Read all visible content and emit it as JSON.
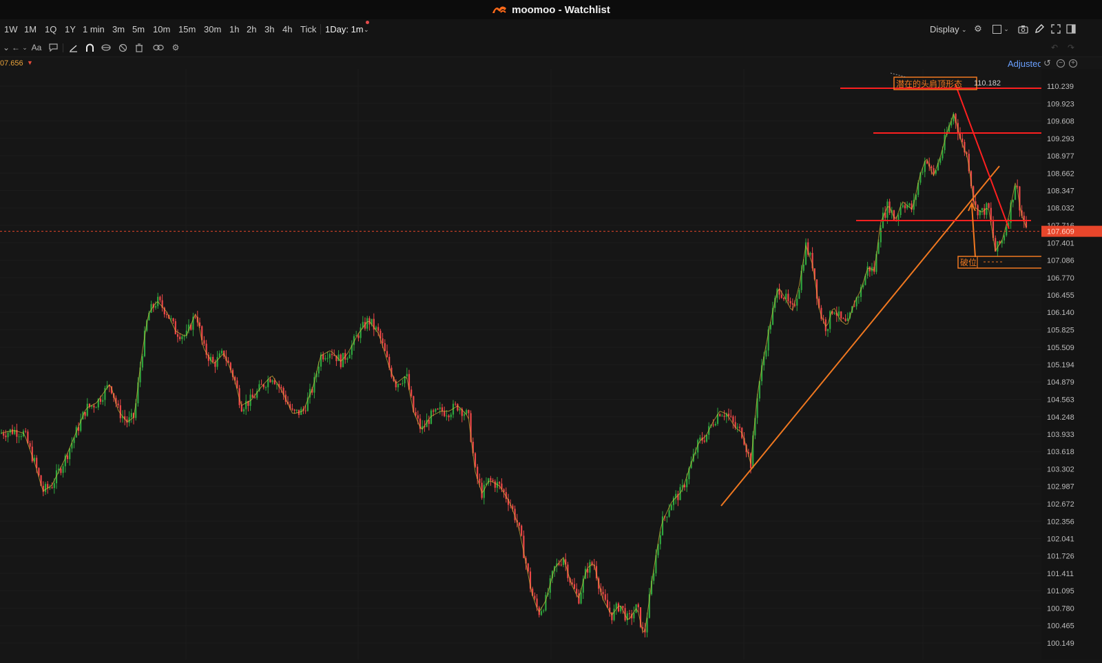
{
  "window": {
    "title": "moomoo - Watchlist",
    "logo_icon": "moomoo-logo-icon"
  },
  "toolbar": {
    "intervals": [
      "1W",
      "1M",
      "1Q",
      "1Y",
      "1 min",
      "3m",
      "5m",
      "10m",
      "15m",
      "30m",
      "1h",
      "2h",
      "3h",
      "4h",
      "Tick"
    ],
    "range_select": "1Day: 1m",
    "display_label": "Display",
    "right_icons": [
      "settings-gear-icon",
      "layout-square-icon",
      "camera-icon",
      "pen-icon",
      "fullscreen-icon",
      "sidebar-toggle-icon"
    ]
  },
  "drawing_toolbar": {
    "icons": [
      "cursor-icon",
      "arrow-back-icon",
      "text-aa-icon",
      "comment-icon",
      "line-draw-icon",
      "magnet-icon",
      "eye-lock-icon",
      "hide-icon",
      "trash-icon",
      "link-icon",
      "settings-icon"
    ],
    "text_tool_label": "Aa"
  },
  "status": {
    "price_readout": "07.656",
    "adjusted_label": "Adjusted"
  },
  "colors": {
    "up": "#2fa83f",
    "down": "#f04848",
    "annotation": "#f07820",
    "hline": "#ff2020",
    "current_price_bg": "#e8462b"
  },
  "chart_data": {
    "type": "candlestick",
    "ylim": [
      100.149,
      110.45
    ],
    "y_ticks": [
      "110.239",
      "109.923",
      "109.608",
      "109.293",
      "108.977",
      "108.662",
      "108.347",
      "108.032",
      "107.716",
      "107.401",
      "107.086",
      "106.770",
      "106.455",
      "106.140",
      "105.825",
      "105.509",
      "105.194",
      "104.879",
      "104.563",
      "104.248",
      "103.933",
      "103.618",
      "103.302",
      "102.987",
      "102.672",
      "102.356",
      "102.041",
      "101.726",
      "101.411",
      "101.095",
      "100.780",
      "100.465",
      "100.149"
    ],
    "current_price": {
      "label": "107.609",
      "value": 107.609
    },
    "path": [
      [
        0,
        103.95
      ],
      [
        20,
        104.0
      ],
      [
        35,
        103.95
      ],
      [
        52,
        103.35
      ],
      [
        62,
        102.9
      ],
      [
        75,
        103.0
      ],
      [
        95,
        103.5
      ],
      [
        110,
        103.95
      ],
      [
        125,
        104.4
      ],
      [
        140,
        104.5
      ],
      [
        160,
        104.85
      ],
      [
        172,
        104.35
      ],
      [
        185,
        104.15
      ],
      [
        195,
        104.25
      ],
      [
        205,
        105.3
      ],
      [
        215,
        106.1
      ],
      [
        228,
        106.35
      ],
      [
        242,
        106.15
      ],
      [
        255,
        105.8
      ],
      [
        270,
        105.7
      ],
      [
        285,
        106.15
      ],
      [
        295,
        105.5
      ],
      [
        310,
        105.2
      ],
      [
        325,
        105.4
      ],
      [
        340,
        104.95
      ],
      [
        350,
        104.45
      ],
      [
        365,
        104.55
      ],
      [
        380,
        104.8
      ],
      [
        395,
        105.0
      ],
      [
        410,
        104.7
      ],
      [
        425,
        104.3
      ],
      [
        440,
        104.35
      ],
      [
        455,
        104.8
      ],
      [
        465,
        105.35
      ],
      [
        480,
        105.45
      ],
      [
        495,
        105.25
      ],
      [
        505,
        105.4
      ],
      [
        520,
        105.75
      ],
      [
        535,
        106.0
      ],
      [
        550,
        105.75
      ],
      [
        565,
        105.15
      ],
      [
        575,
        104.85
      ],
      [
        590,
        105.0
      ],
      [
        600,
        104.35
      ],
      [
        612,
        104.0
      ],
      [
        625,
        104.25
      ],
      [
        640,
        104.35
      ],
      [
        652,
        104.35
      ],
      [
        665,
        104.45
      ],
      [
        680,
        104.25
      ],
      [
        690,
        103.25
      ],
      [
        700,
        102.85
      ],
      [
        710,
        103.1
      ],
      [
        725,
        103.0
      ],
      [
        740,
        102.7
      ],
      [
        752,
        102.3
      ],
      [
        762,
        101.7
      ],
      [
        772,
        101.05
      ],
      [
        782,
        100.7
      ],
      [
        792,
        100.9
      ],
      [
        805,
        101.5
      ],
      [
        818,
        101.7
      ],
      [
        830,
        101.2
      ],
      [
        840,
        100.95
      ],
      [
        852,
        101.5
      ],
      [
        862,
        101.6
      ],
      [
        875,
        100.95
      ],
      [
        888,
        100.65
      ],
      [
        900,
        100.85
      ],
      [
        912,
        100.55
      ],
      [
        925,
        100.8
      ],
      [
        935,
        100.25
      ],
      [
        948,
        101.4
      ],
      [
        960,
        102.3
      ],
      [
        975,
        102.7
      ],
      [
        990,
        102.9
      ],
      [
        1002,
        103.35
      ],
      [
        1015,
        103.8
      ],
      [
        1025,
        103.9
      ],
      [
        1035,
        104.15
      ],
      [
        1045,
        104.35
      ],
      [
        1055,
        104.3
      ],
      [
        1068,
        104.05
      ],
      [
        1078,
        103.95
      ],
      [
        1090,
        103.4
      ],
      [
        1100,
        104.7
      ],
      [
        1110,
        105.4
      ],
      [
        1120,
        106.05
      ],
      [
        1130,
        106.6
      ],
      [
        1140,
        106.4
      ],
      [
        1150,
        106.15
      ],
      [
        1160,
        106.6
      ],
      [
        1170,
        107.35
      ],
      [
        1180,
        107.0
      ],
      [
        1190,
        106.15
      ],
      [
        1200,
        105.85
      ],
      [
        1210,
        106.25
      ],
      [
        1220,
        106.0
      ],
      [
        1230,
        105.9
      ],
      [
        1240,
        106.3
      ],
      [
        1250,
        106.55
      ],
      [
        1260,
        106.95
      ],
      [
        1270,
        106.9
      ],
      [
        1278,
        107.75
      ],
      [
        1290,
        108.1
      ],
      [
        1300,
        107.8
      ],
      [
        1310,
        108.15
      ],
      [
        1325,
        108.0
      ],
      [
        1335,
        108.6
      ],
      [
        1345,
        108.95
      ],
      [
        1355,
        108.6
      ],
      [
        1365,
        108.95
      ],
      [
        1375,
        109.4
      ],
      [
        1385,
        109.75
      ],
      [
        1395,
        109.25
      ],
      [
        1405,
        108.95
      ],
      [
        1415,
        108.05
      ],
      [
        1425,
        107.95
      ],
      [
        1435,
        108.05
      ],
      [
        1445,
        107.25
      ],
      [
        1455,
        107.45
      ],
      [
        1465,
        107.9
      ],
      [
        1475,
        108.55
      ],
      [
        1482,
        107.95
      ],
      [
        1492,
        107.609
      ]
    ],
    "annotations": [
      {
        "type": "label",
        "text": "潜在的头肩顶形态",
        "value": "110.182"
      },
      {
        "type": "label",
        "text": "破位"
      },
      {
        "type": "hline",
        "value": 110.2
      },
      {
        "type": "hline",
        "value": 109.35
      },
      {
        "type": "hline",
        "value": 107.75
      },
      {
        "type": "trendline"
      },
      {
        "type": "neckline-break-arrow"
      }
    ]
  }
}
